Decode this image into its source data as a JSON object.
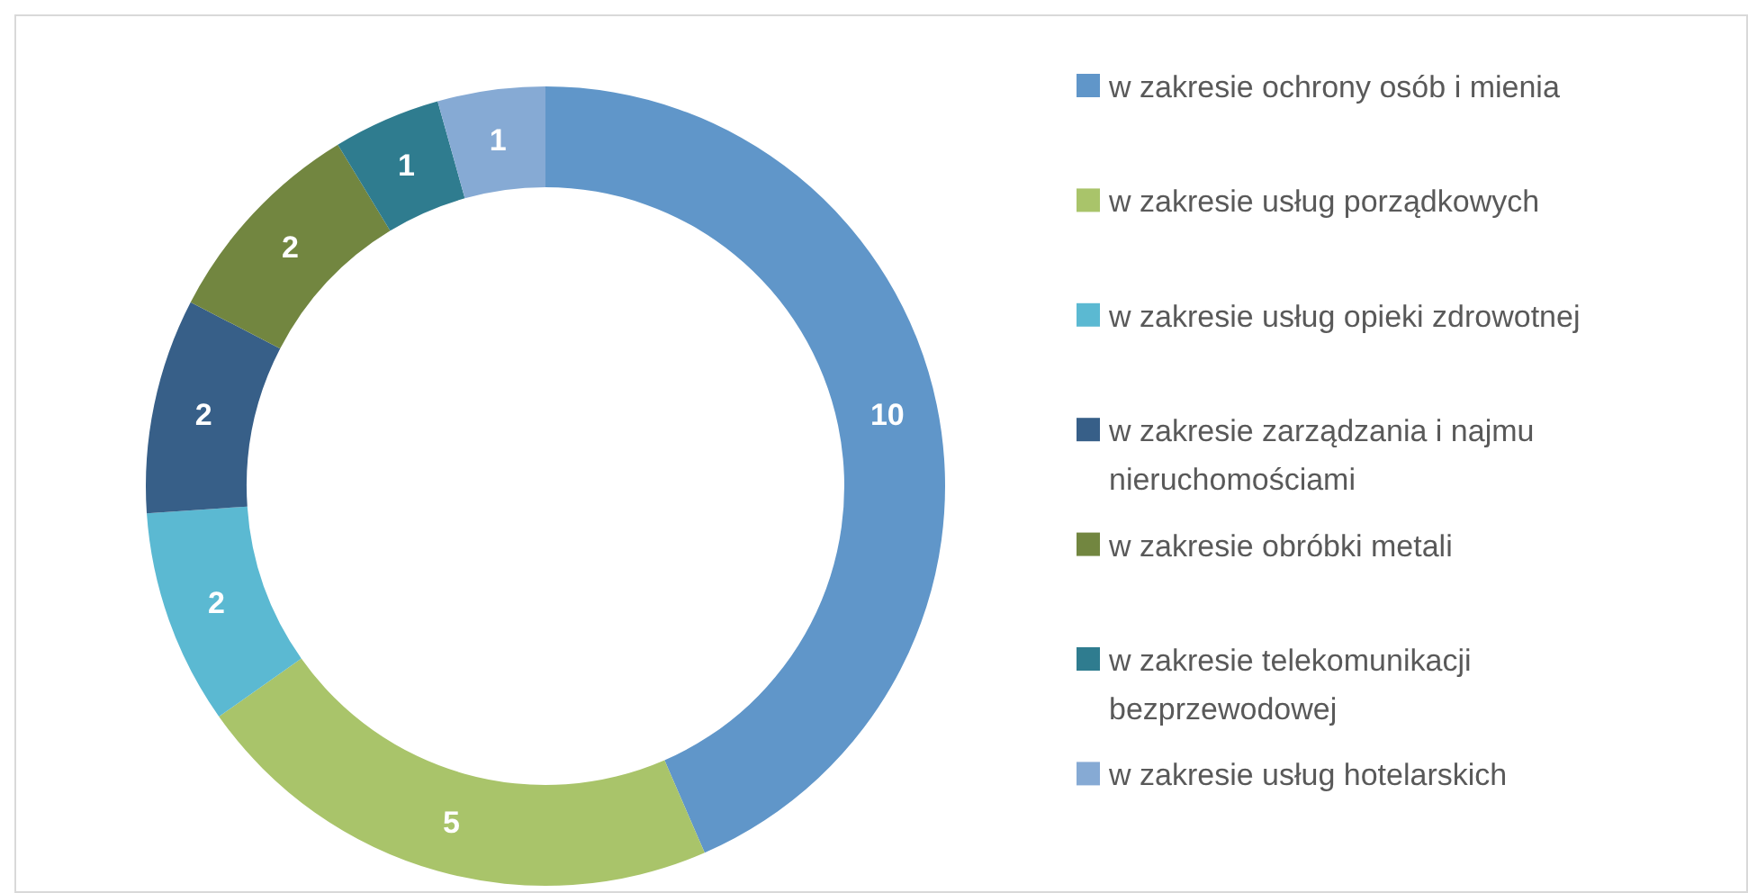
{
  "chart_data": {
    "type": "donut",
    "categories": [
      "w zakresie ochrony osób i mienia",
      "w zakresie usług porządkowych",
      "w zakresie usług opieki zdrowotnej",
      "w zakresie zarządzania i najmu nieruchomościami",
      "w zakresie obróbki metali",
      "w zakresie telekomunikacji bezprzewodowej",
      "w zakresie usług hotelarskich"
    ],
    "values": [
      10,
      5,
      2,
      2,
      2,
      1,
      1
    ],
    "colors": [
      "#6096c9",
      "#a9c46a",
      "#5bb9d2",
      "#375f88",
      "#728640",
      "#2f7c8f",
      "#86aad4"
    ],
    "data_labels": true,
    "legend": "right"
  }
}
